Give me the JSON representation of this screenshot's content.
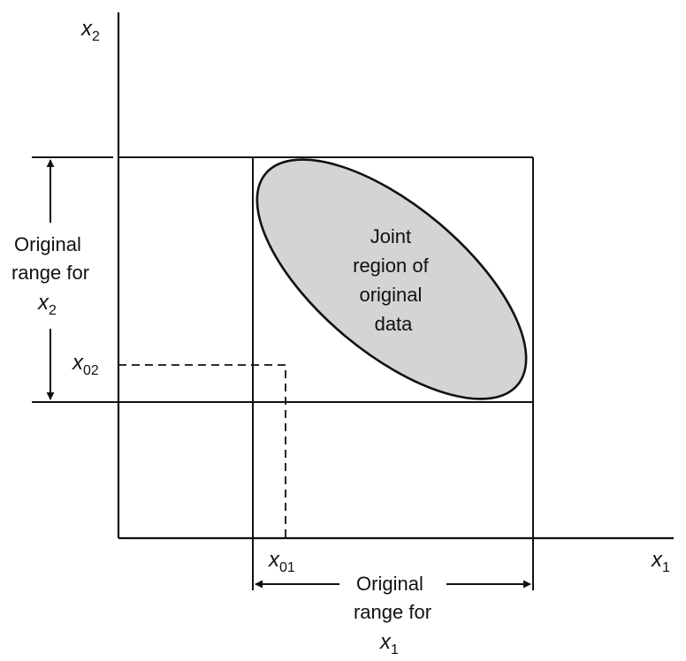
{
  "diagram": {
    "axes": {
      "x_symbol": "x",
      "x_subscript": "1",
      "y_symbol": "x",
      "y_subscript": "2"
    },
    "ellipse": {
      "label_lines": [
        "Joint",
        "region of",
        "original",
        "data"
      ],
      "fill_color": "#d4d4d4"
    },
    "x_range": {
      "label_lines": [
        "Original",
        "range for"
      ],
      "var_symbol": "x",
      "var_subscript": "1"
    },
    "y_range": {
      "label_lines": [
        "Original",
        "range for"
      ],
      "var_symbol": "x",
      "var_subscript": "2"
    },
    "point": {
      "x_symbol": "x",
      "x_subscript": "01",
      "y_symbol": "x",
      "y_subscript": "02"
    },
    "colors": {
      "ink": "#111111",
      "ellipse_fill": "#d4d4d4"
    }
  }
}
